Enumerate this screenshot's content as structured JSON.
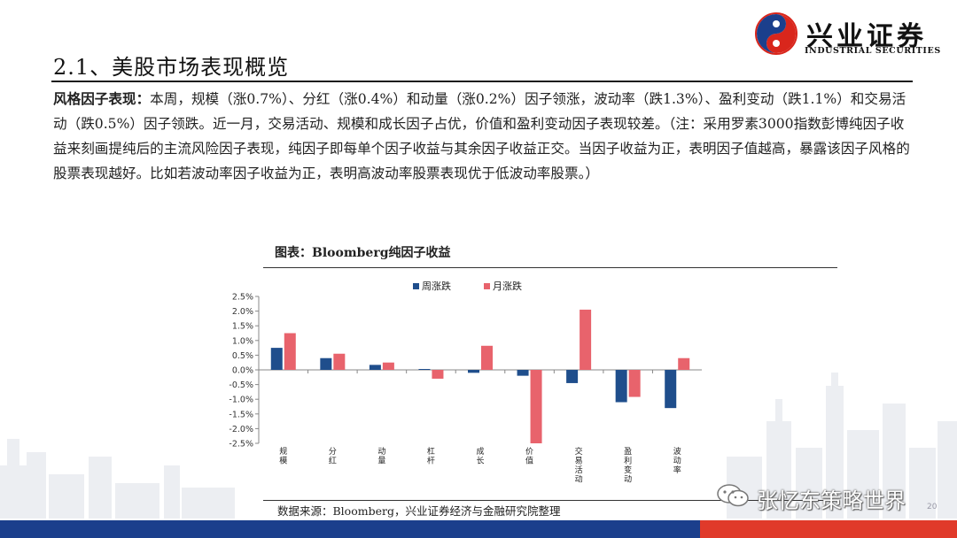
{
  "header": {
    "title": "2.1、美股市场表现概览",
    "logo_cn": "兴业证券",
    "logo_en": "INDUSTRIAL SECURITIES"
  },
  "body": {
    "lead": "风格因子表现：",
    "text": "本周，规模（涨0.7%）、分红（涨0.4%）和动量（涨0.2%）因子领涨，波动率（跌1.3%）、盈利变动（跌1.1%）和交易活动（跌0.5%）因子领跌。近一月，交易活动、规模和成长因子占优，价值和盈利变动因子表现较差。（注：采用罗素3000指数彭博纯因子收益来刻画提纯后的主流风险因子表现，纯因子即每单个因子收益与其余因子收益正交。当因子收益为正，表明因子值越高，暴露该因子风格的股票表现越好。比如若波动率因子收益为正，表明高波动率股票表现优于低波动率股票。）"
  },
  "chart_title": "图表：Bloomberg纯因子收益",
  "chart_data": {
    "type": "bar",
    "title": "",
    "xlabel": "",
    "ylabel": "",
    "categories": [
      "规模",
      "分红",
      "动量",
      "杠杆",
      "成长",
      "价值",
      "交易活动",
      "盈利变动",
      "波动率"
    ],
    "series": [
      {
        "name": "周涨跌",
        "color": "#1f4e8c",
        "values": [
          0.75,
          0.4,
          0.17,
          0.03,
          -0.1,
          -0.2,
          -0.45,
          -1.1,
          -1.3
        ]
      },
      {
        "name": "月涨跌",
        "color": "#e8636c",
        "values": [
          1.25,
          0.55,
          0.25,
          -0.3,
          0.82,
          -2.5,
          2.05,
          -0.92,
          0.4
        ]
      }
    ],
    "ylim": [
      -2.5,
      2.5
    ],
    "yticks": [
      "2.5%",
      "2.0%",
      "1.5%",
      "1.0%",
      "0.5%",
      "0.0%",
      "-0.5%",
      "-1.0%",
      "-1.5%",
      "-2.0%",
      "-2.5%"
    ],
    "legend_position": "top",
    "grid": false
  },
  "source": "数据来源：Bloomberg，兴业证券经济与金融研究院整理",
  "watermark": "张忆东策略世界",
  "page_number": "20",
  "colors": {
    "brand_red": "#e03a2a",
    "brand_blue": "#1b3f8c"
  }
}
